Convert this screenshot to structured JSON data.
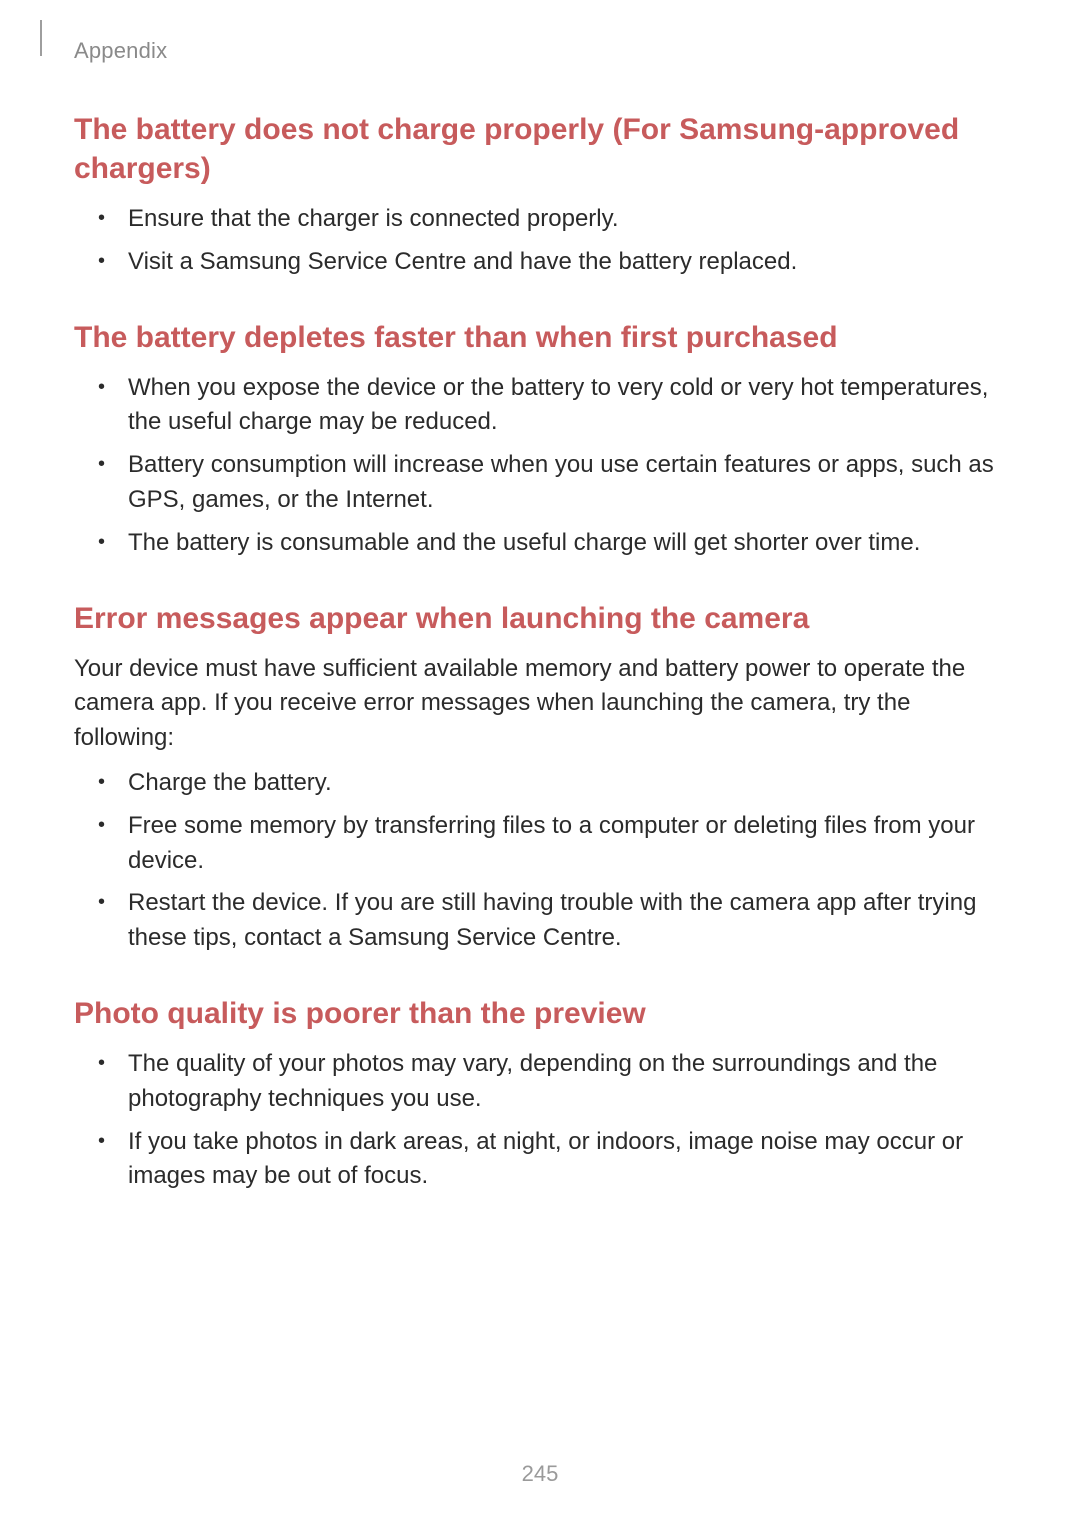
{
  "breadcrumb": "Appendix",
  "page_number": "245",
  "colors": {
    "heading": "#c75b5c",
    "body_text": "#2b2b2b",
    "breadcrumb_text": "#8a8a8a",
    "page_number_text": "#9a9a9a",
    "background": "#ffffff",
    "edge_mark": "#9e9e9e"
  },
  "typography": {
    "heading_fontsize_pt": 22,
    "body_fontsize_pt": 18,
    "breadcrumb_fontsize_pt": 16,
    "heading_weight": 700,
    "body_weight": 400
  },
  "sections": [
    {
      "title": "The battery does not charge properly (For Samsung-approved chargers)",
      "paragraph": null,
      "bullets": [
        "Ensure that the charger is connected properly.",
        "Visit a Samsung Service Centre and have the battery replaced."
      ]
    },
    {
      "title": "The battery depletes faster than when first purchased",
      "paragraph": null,
      "bullets": [
        "When you expose the device or the battery to very cold or very hot temperatures, the useful charge may be reduced.",
        "Battery consumption will increase when you use certain features or apps, such as GPS, games, or the Internet.",
        "The battery is consumable and the useful charge will get shorter over time."
      ]
    },
    {
      "title": "Error messages appear when launching the camera",
      "paragraph": "Your device must have sufficient available memory and battery power to operate the camera app. If you receive error messages when launching the camera, try the following:",
      "bullets": [
        "Charge the battery.",
        "Free some memory by transferring files to a computer or deleting files from your device.",
        "Restart the device. If you are still having trouble with the camera app after trying these tips, contact a Samsung Service Centre."
      ]
    },
    {
      "title": "Photo quality is poorer than the preview",
      "paragraph": null,
      "bullets": [
        "The quality of your photos may vary, depending on the surroundings and the photography techniques you use.",
        "If you take photos in dark areas, at night, or indoors, image noise may occur or images may be out of focus."
      ]
    }
  ]
}
